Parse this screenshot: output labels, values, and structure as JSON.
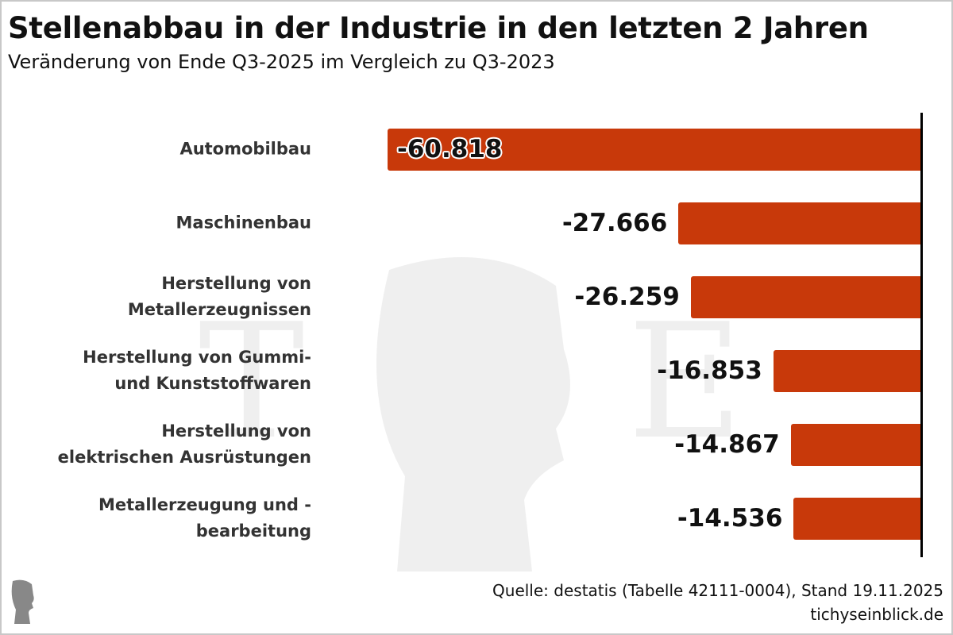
{
  "title": "Stellenabbau in der Industrie in den letzten 2 Jahren",
  "subtitle": "Veränderung von Ende Q3-2025 im Vergleich zu Q3-2023",
  "source": "Quelle: destatis (Tabelle 42111-0004), Stand 19.11.2025",
  "site": "tichyseinblick.de",
  "chart_data": {
    "type": "bar",
    "orientation": "horizontal",
    "title": "Stellenabbau in der Industrie in den letzten 2 Jahren",
    "subtitle": "Veränderung von Ende Q3-2025 im Vergleich zu Q3-2023",
    "categories": [
      "Automobilbau",
      "Maschinenbau",
      "Herstellung von Metallerzeugnissen",
      "Herstellung von Gummi- und Kunststoffwaren",
      "Herstellung von elektrischen Ausrüstungen",
      "Metallerzeugung und -bearbeitung"
    ],
    "category_lines": [
      [
        "Automobilbau"
      ],
      [
        "Maschinenbau"
      ],
      [
        "Herstellung von",
        "Metallerzeugnissen"
      ],
      [
        "Herstellung von Gummi-",
        "und Kunststoffwaren"
      ],
      [
        "Herstellung von",
        "elektrischen Ausrüstungen"
      ],
      [
        "Metallerzeugung und -",
        "bearbeitung"
      ]
    ],
    "values": [
      -60818,
      -27666,
      -26259,
      -16853,
      -14867,
      -14536
    ],
    "data_labels": [
      "-60.818",
      "-27.666",
      "-26.259",
      "-16.853",
      "-14.867",
      "-14.536"
    ],
    "bar_color": "#c8390a",
    "grid": false,
    "legend": "none"
  }
}
